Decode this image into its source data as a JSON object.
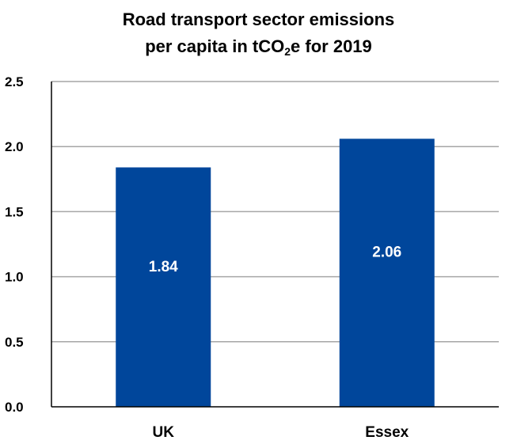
{
  "chart_data": {
    "type": "bar",
    "title_line1": "Road transport sector emissions",
    "title_line2_prefix": "per capita in tCO",
    "title_line2_sub": "2",
    "title_line2_suffix": "e for 2019",
    "categories": [
      "UK",
      "Essex"
    ],
    "values": [
      1.84,
      2.06
    ],
    "data_labels": [
      "1.84",
      "2.06"
    ],
    "ylim": [
      0,
      2.5
    ],
    "yticks": [
      0.0,
      0.5,
      1.0,
      1.5,
      2.0,
      2.5
    ],
    "ytick_labels": [
      "0.0",
      "0.5",
      "1.0",
      "1.5",
      "2.0",
      "2.5"
    ],
    "xlabel": "",
    "ylabel": "",
    "grid": true,
    "bar_color": "#00469b",
    "grid_color": "#a6a6a6",
    "axis_color": "#000000"
  }
}
